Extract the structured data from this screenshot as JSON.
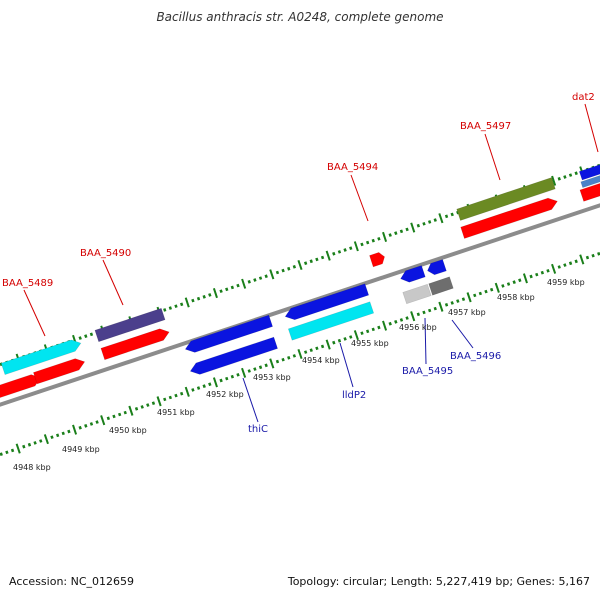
{
  "title": "Bacillus anthracis str. A0248, complete genome",
  "accession": "Accession: NC_012659",
  "summary": "Topology: circular; Length: 5,227,419 bp; Genes: 5,167",
  "colors": {
    "backbone": "#8c8c8c",
    "tick_outer": "#1a7f1a",
    "tick_inner": "#1a7f1a",
    "label_top": "#d40000",
    "label_bottom": "#1a1aa8",
    "leader_top": "#d40000",
    "leader_bottom": "#1a1aa8"
  },
  "kbp_labels": [
    "4948 kbp",
    "4949 kbp",
    "4950 kbp",
    "4951 kbp",
    "4952 kbp",
    "4953 kbp",
    "4954 kbp",
    "4955 kbp",
    "4956 kbp",
    "4957 kbp",
    "4958 kbp",
    "4959 kbp"
  ],
  "gene_labels_top": [
    "BAA_5489",
    "BAA_5490",
    "BAA_5494",
    "BAA_5497",
    "dat2"
  ],
  "gene_labels_bottom": [
    "thiC",
    "lldP2",
    "BAA_5495",
    "BAA_5496"
  ],
  "feature_colors": {
    "red": "#ff0000",
    "cyan": "#00e5f0",
    "purple": "#4b3f8c",
    "blue": "#0a14e0",
    "olive": "#6b8a23",
    "gray_light": "#c8c8c8",
    "gray_dark": "#6e6e6e",
    "steel": "#4a82c8"
  }
}
